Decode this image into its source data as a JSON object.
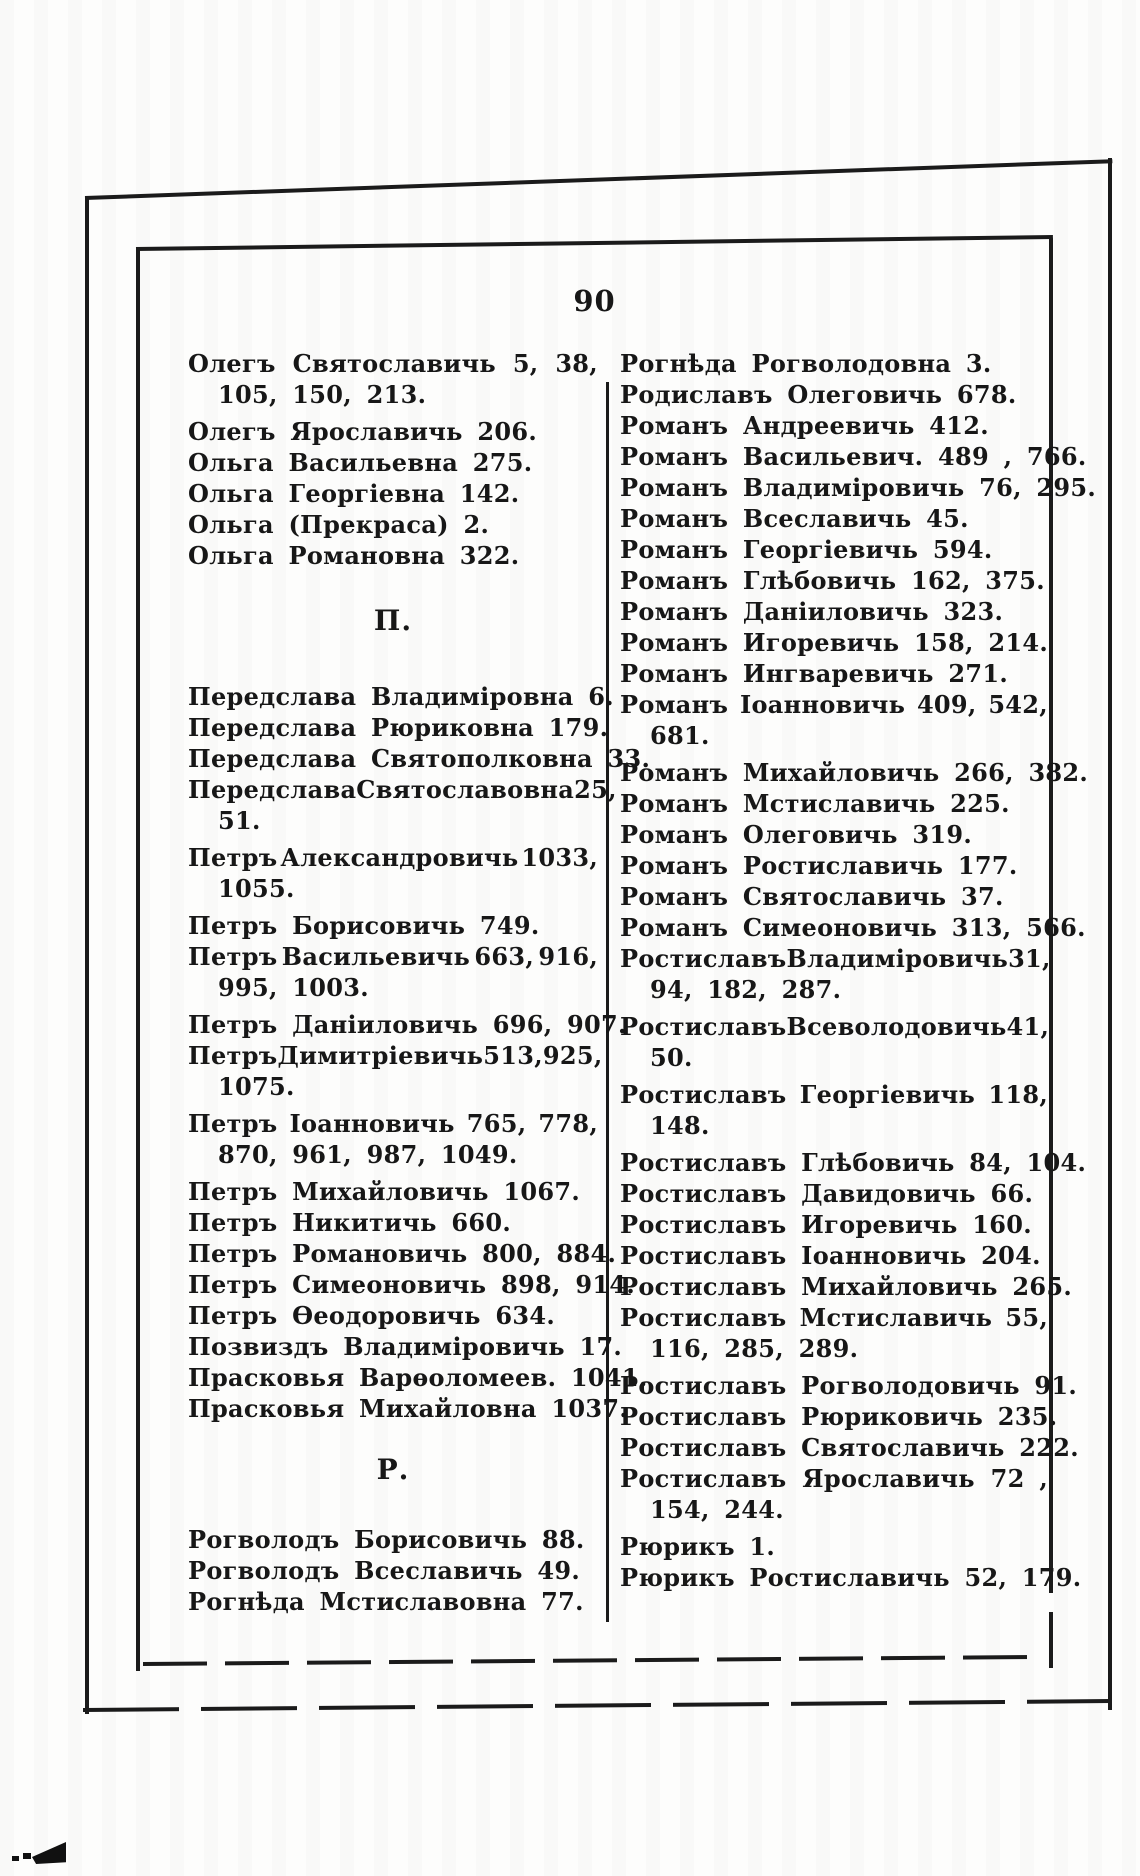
{
  "page": {
    "number": "90"
  },
  "colors": {
    "ink": "#1b1b1b",
    "paper": "#fdfdfc"
  },
  "columns": [
    {
      "blocks": [
        {
          "type": "entry",
          "lines": [
            "Олегъ Святославичь 5, 38,",
            "105, 150, 213."
          ]
        },
        {
          "type": "entry",
          "lines": [
            "Олегъ Ярославичь 206."
          ]
        },
        {
          "type": "entry",
          "lines": [
            "Ольга Васильевна 275."
          ]
        },
        {
          "type": "entry",
          "lines": [
            "Ольга Георгіевна 142."
          ]
        },
        {
          "type": "entry",
          "lines": [
            "Ольга (Прекраса) 2."
          ]
        },
        {
          "type": "entry",
          "lines": [
            "Ольга Романовна 322."
          ]
        },
        {
          "type": "header",
          "label": "П."
        },
        {
          "type": "entry",
          "lines": [
            "Передслава Владиміровна 6."
          ]
        },
        {
          "type": "entry",
          "lines": [
            "Передслава Рюриковна 179."
          ]
        },
        {
          "type": "entry",
          "lines": [
            "Передслава Святополковна 33."
          ]
        },
        {
          "type": "entry",
          "lines": [
            "Передслава Святославовна 25,",
            "51."
          ]
        },
        {
          "type": "entry",
          "lines": [
            "Петръ Александровичь 1033,",
            "1055."
          ]
        },
        {
          "type": "entry",
          "lines": [
            "Петръ Борисовичь 749."
          ]
        },
        {
          "type": "entry",
          "lines": [
            "Петръ Васильевичь 663, 916,",
            "995, 1003."
          ]
        },
        {
          "type": "entry",
          "lines": [
            "Петръ Даніиловичь 696, 907."
          ]
        },
        {
          "type": "entry",
          "lines": [
            "Петръ Димитріевичь 513, 925,",
            "1075."
          ]
        },
        {
          "type": "entry",
          "lines": [
            "Петръ Іоанновичь 765, 778,",
            "870, 961, 987, 1049."
          ]
        },
        {
          "type": "entry",
          "lines": [
            "Петръ Михайловичь 1067."
          ]
        },
        {
          "type": "entry",
          "lines": [
            "Петръ Никитичь 660."
          ]
        },
        {
          "type": "entry",
          "lines": [
            "Петръ Романовичь 800, 884."
          ]
        },
        {
          "type": "entry",
          "lines": [
            "Петръ Симеоновичь 898, 914."
          ]
        },
        {
          "type": "entry",
          "lines": [
            "Петръ Ѳеодоровичь 634."
          ]
        },
        {
          "type": "entry",
          "lines": [
            "Позвиздъ Владиміровичь 17."
          ]
        },
        {
          "type": "entry",
          "lines": [
            "Прасковья Варѳоломеев. 1041."
          ]
        },
        {
          "type": "entry",
          "lines": [
            "Прасковья Михайловна 1037."
          ]
        },
        {
          "type": "header",
          "label": "Р."
        },
        {
          "type": "entry",
          "lines": [
            "Рогволодъ Борисовичь 88."
          ]
        },
        {
          "type": "entry",
          "lines": [
            "Рогволодъ Всеславичь 49."
          ]
        },
        {
          "type": "entry",
          "lines": [
            "Рогнѣда Мстиславовна 77."
          ]
        }
      ]
    },
    {
      "blocks": [
        {
          "type": "entry",
          "lines": [
            "Рогнѣда Рогволодовна 3."
          ]
        },
        {
          "type": "entry",
          "lines": [
            "Родиславъ Олеговичь 678."
          ]
        },
        {
          "type": "entry",
          "lines": [
            "Романъ Андреевичь 412."
          ]
        },
        {
          "type": "entry",
          "lines": [
            "Романъ Васильевич. 489 , 766."
          ]
        },
        {
          "type": "entry",
          "lines": [
            "Романъ Владиміровичь 76, 295."
          ]
        },
        {
          "type": "entry",
          "lines": [
            "Романъ Всеславичь 45."
          ]
        },
        {
          "type": "entry",
          "lines": [
            "Романъ Георгіевичь 594."
          ]
        },
        {
          "type": "entry",
          "lines": [
            "Романъ Глѣбовичь 162, 375."
          ]
        },
        {
          "type": "entry",
          "lines": [
            "Романъ Даніиловичь 323."
          ]
        },
        {
          "type": "entry",
          "lines": [
            "Романъ Игоревичь 158, 214."
          ]
        },
        {
          "type": "entry",
          "lines": [
            "Романъ Ингваревичь 271."
          ]
        },
        {
          "type": "entry",
          "lines": [
            "Романъ Іоанновичь 409, 542,",
            "681."
          ]
        },
        {
          "type": "entry",
          "lines": [
            "Романъ Михайловичь 266, 382."
          ]
        },
        {
          "type": "entry",
          "lines": [
            "Романъ Мстиславичь 225."
          ]
        },
        {
          "type": "entry",
          "lines": [
            "Романъ Олеговичь 319."
          ]
        },
        {
          "type": "entry",
          "lines": [
            "Романъ Ростиславичь 177."
          ]
        },
        {
          "type": "entry",
          "lines": [
            "Романъ Святославичь 37."
          ]
        },
        {
          "type": "entry",
          "lines": [
            "Романъ Симеоновичь 313, 566."
          ]
        },
        {
          "type": "entry",
          "lines": [
            "Ростиславъ Владиміровичь 31,",
            "94, 182, 287."
          ]
        },
        {
          "type": "entry",
          "lines": [
            "Ростиславъ Всеволодовичь 41,",
            "50."
          ]
        },
        {
          "type": "entry",
          "lines": [
            "Ростиславъ Георгіевичь 118,",
            "148."
          ]
        },
        {
          "type": "entry",
          "lines": [
            "Ростиславъ Глѣбовичь 84, 104."
          ]
        },
        {
          "type": "entry",
          "lines": [
            "Ростиславъ Давидовичь 66."
          ]
        },
        {
          "type": "entry",
          "lines": [
            "Ростиславъ Игоревичь 160."
          ]
        },
        {
          "type": "entry",
          "lines": [
            "Ростиславъ Іоанновичь 204."
          ]
        },
        {
          "type": "entry",
          "lines": [
            "Ростиславъ Михайловичь 265."
          ]
        },
        {
          "type": "entry",
          "lines": [
            "Ростиславъ Мстиславичь 55,",
            "116, 285, 289."
          ]
        },
        {
          "type": "entry",
          "lines": [
            "Ростиславъ Рогволодовичь 91."
          ]
        },
        {
          "type": "entry",
          "lines": [
            "Ростиславъ Рюриковичь 235."
          ]
        },
        {
          "type": "entry",
          "lines": [
            "Ростиславъ Святославичь 222."
          ]
        },
        {
          "type": "entry",
          "lines": [
            "Ростиславъ Ярославичь 72 ,",
            "154, 244."
          ]
        },
        {
          "type": "entry",
          "lines": [
            "Рюрикъ 1."
          ]
        },
        {
          "type": "entry",
          "lines": [
            "Рюрикъ Ростиславичь 52, 179."
          ]
        }
      ]
    }
  ]
}
